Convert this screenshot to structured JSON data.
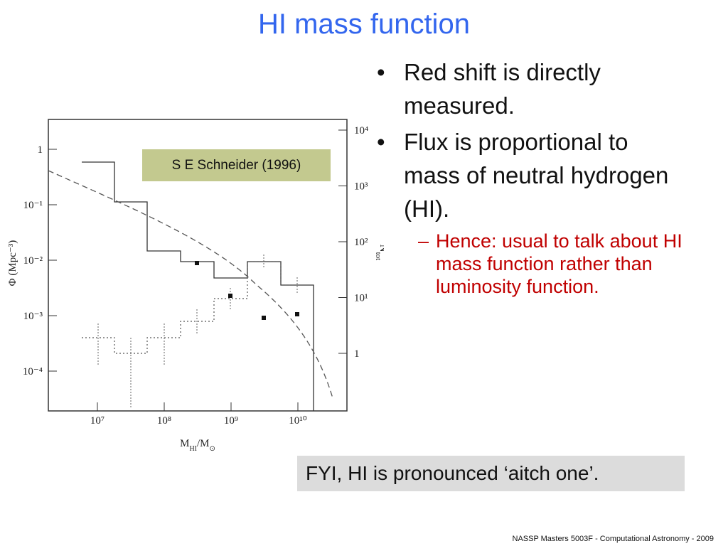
{
  "title": "HI mass function",
  "bullets": [
    {
      "text": "Red shift is directly measured."
    },
    {
      "text": "Flux is proportional to mass of neutral hydrogen (HI).",
      "sub_bullets": [
        "Hence: usual to talk about HI mass function rather than luminosity function."
      ]
    }
  ],
  "figure": {
    "caption": "S E Schneider (1996)",
    "x_ticks": [
      "10⁷",
      "10⁸",
      "10⁹",
      "10¹⁰"
    ],
    "y_ticks": [
      "1",
      "10⁻¹",
      "10⁻²",
      "10⁻³",
      "10⁻⁴"
    ],
    "y2_ticks": [
      "10⁴",
      "10³",
      "10²",
      "10¹",
      "1"
    ],
    "x_label": {
      "main": "M",
      "subscript": "HI",
      "rest": "/M",
      "rest_subscript": "⊙"
    },
    "y_label": "Φ (Mpc⁻³)",
    "y2_label": {
      "main": "N",
      "subscript": "tot"
    }
  },
  "note": "FYI, HI is pronounced ‘aitch one’.",
  "footer": "NASSP Masters 5003F - Computational Astronomy - 2009"
}
